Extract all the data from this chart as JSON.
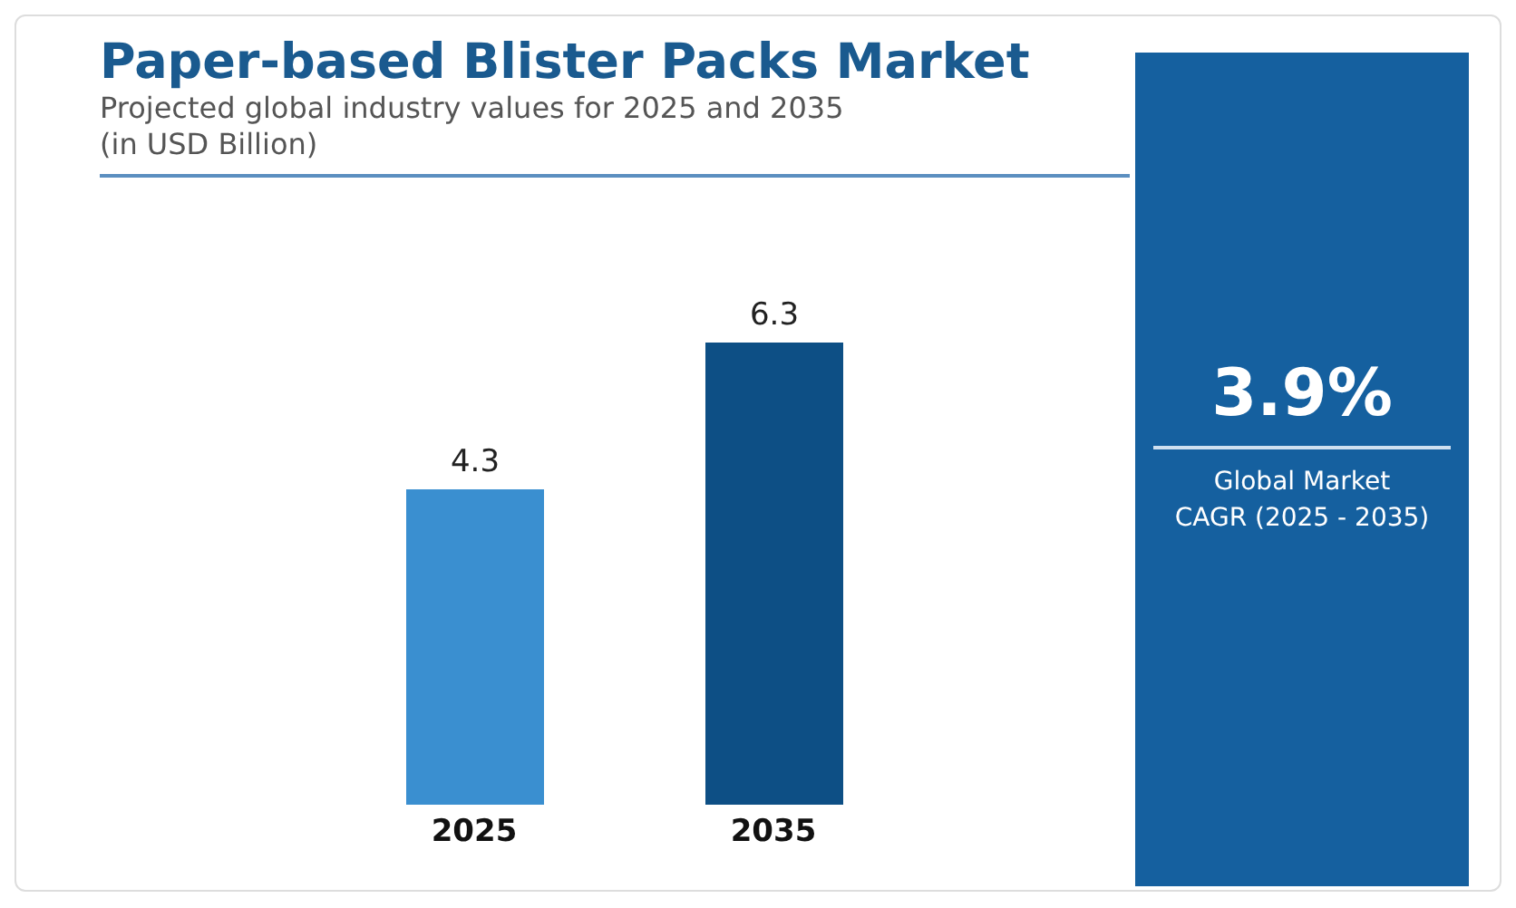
{
  "chart_data": {
    "type": "bar",
    "title": "Paper-based Blister Packs Market",
    "subtitle": "Projected global industry values for 2025 and 2035\n(in USD Billion)",
    "categories": [
      "2025",
      "2035"
    ],
    "values": [
      4.3,
      6.3
    ],
    "colors": [
      "#3a8fd0",
      "#0d4f85"
    ],
    "data_labels": true,
    "relative": false,
    "tick_labels": "x",
    "annotations": [
      "3.9%",
      "Global Market",
      "CAGR (2025 - 2035)"
    ]
  }
}
